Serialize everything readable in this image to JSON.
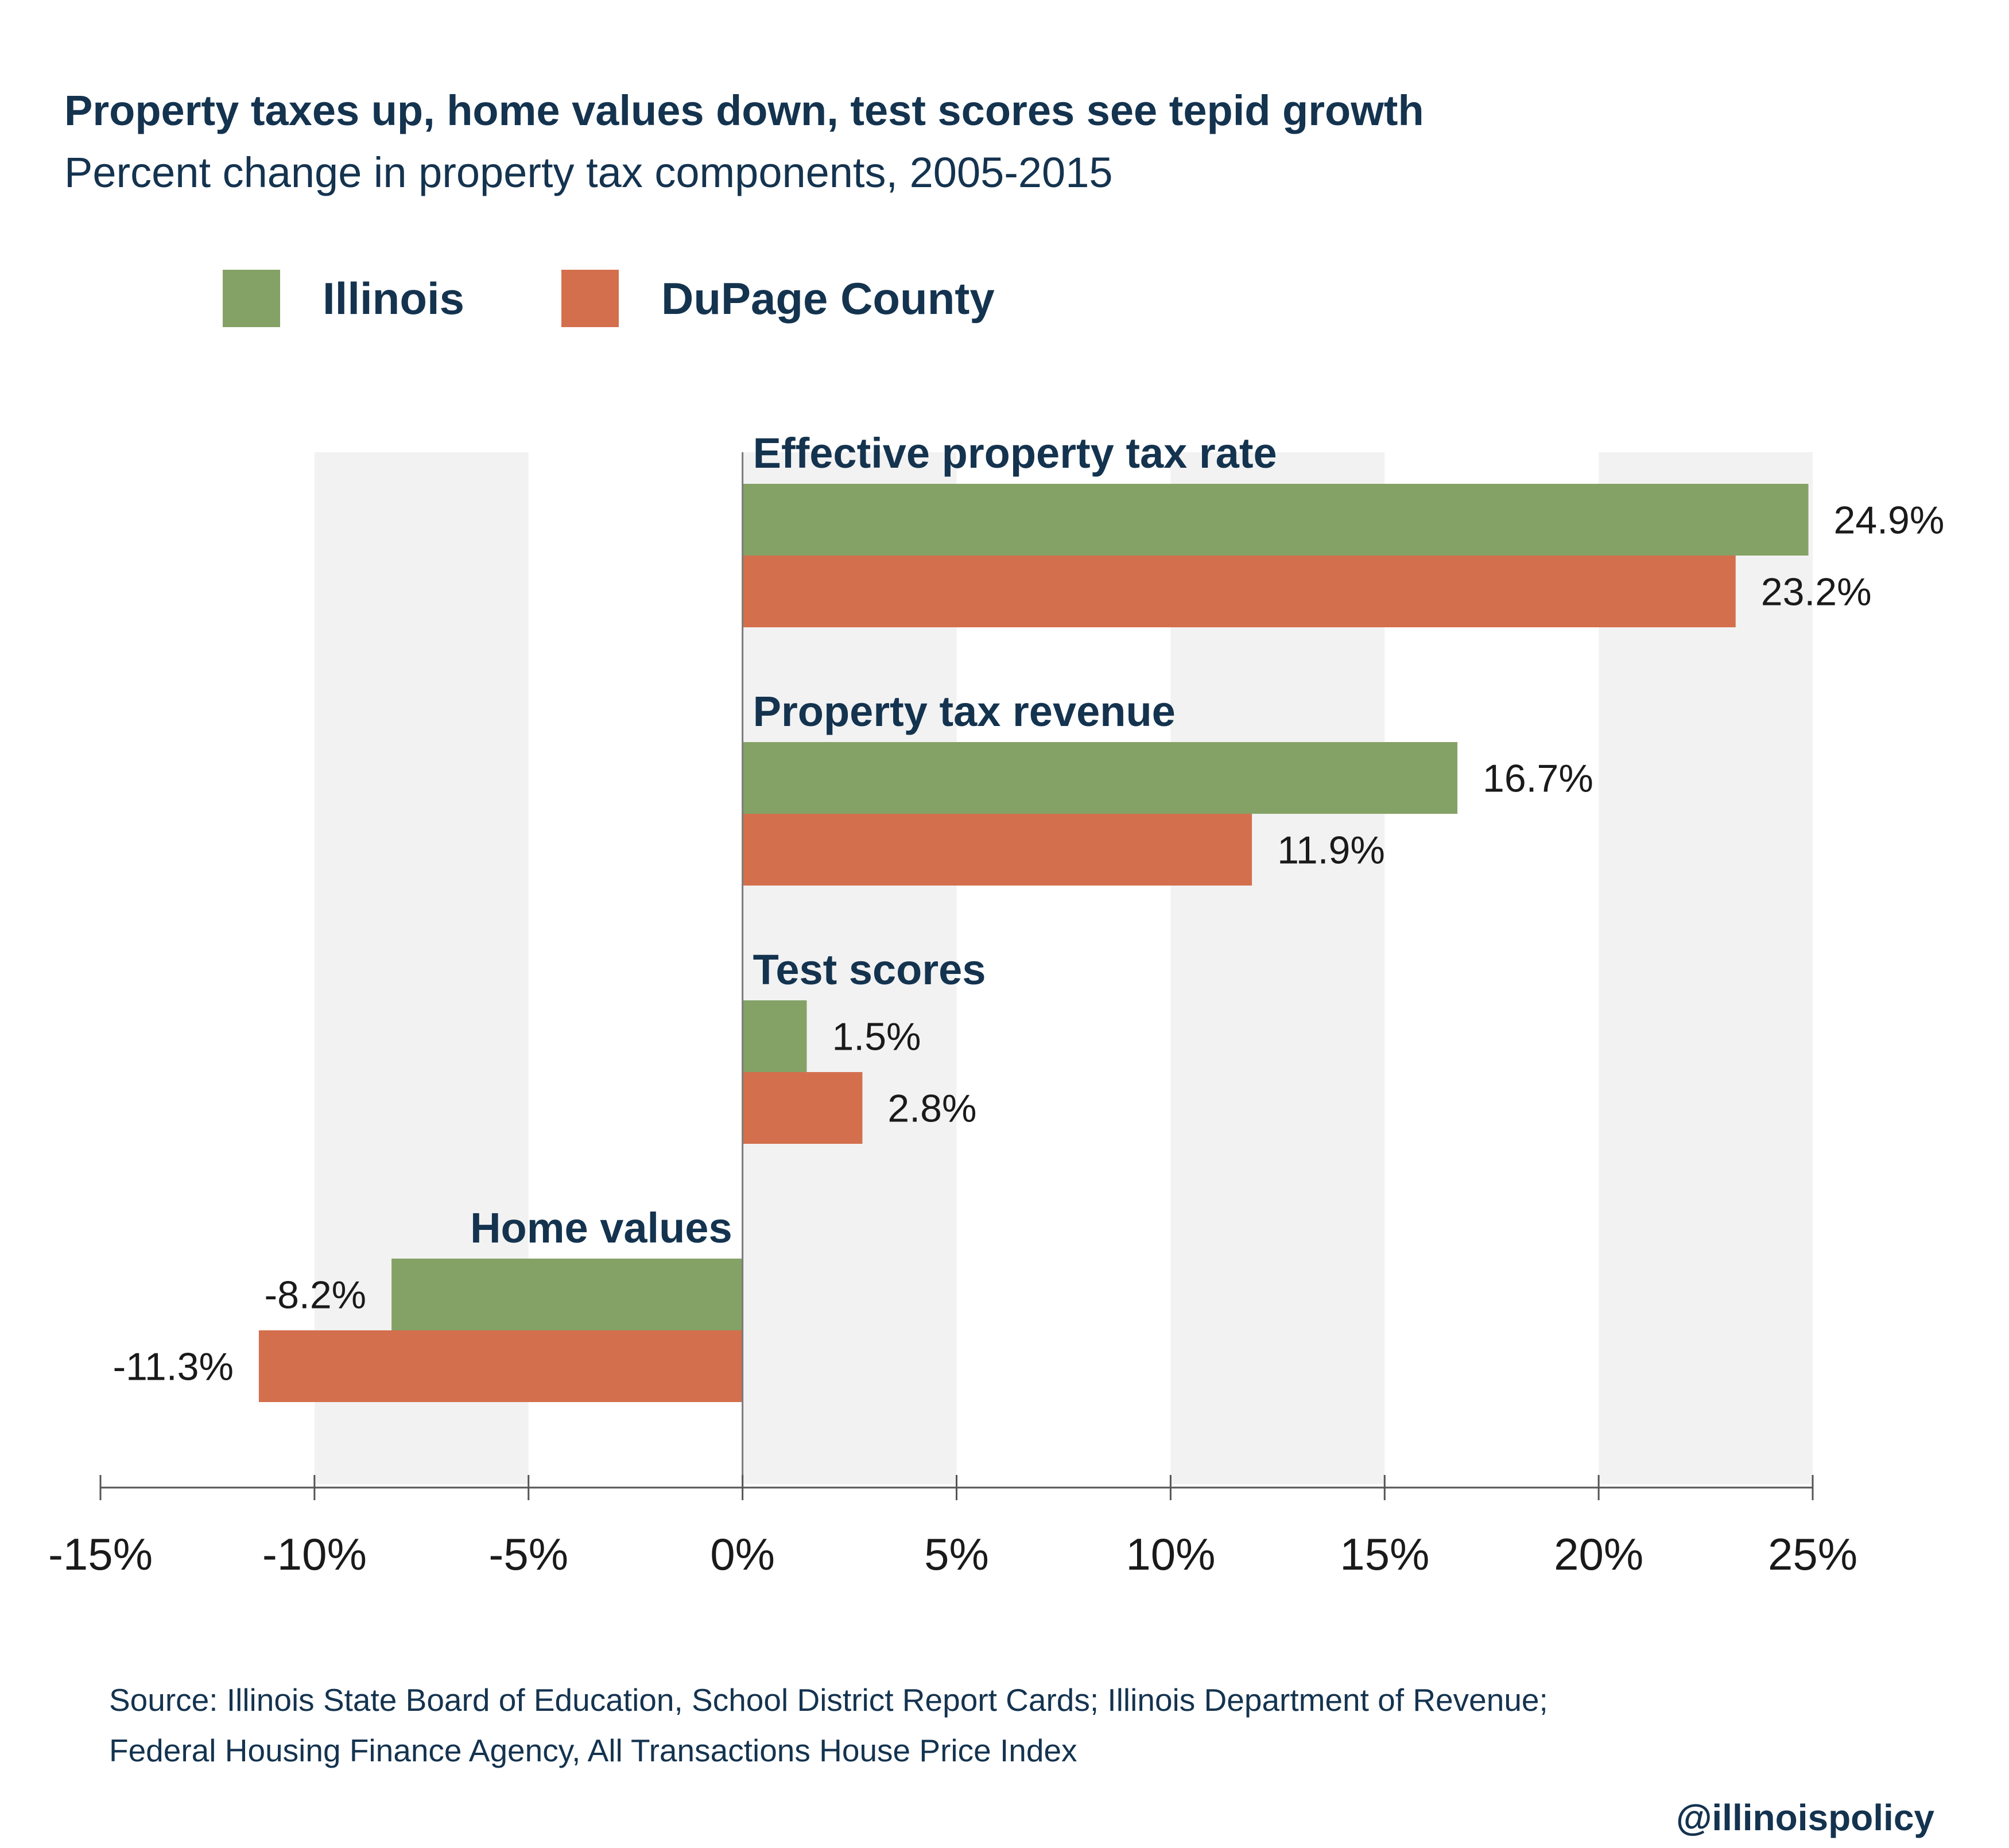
{
  "title": "Property taxes up, home values down, test scores see tepid growth",
  "subtitle": "Percent change in property tax components, 2005-2015",
  "legend": [
    {
      "label": "Illinois",
      "color": "#84a266"
    },
    {
      "label": "DuPage County",
      "color": "#d46f4d"
    }
  ],
  "chart_data": {
    "type": "bar",
    "orientation": "horizontal",
    "categories": [
      "Effective property tax rate",
      "Property tax revenue",
      "Test scores",
      "Home values"
    ],
    "series": [
      {
        "name": "Illinois",
        "color": "#84a266",
        "values": [
          24.9,
          16.7,
          1.5,
          -8.2
        ],
        "labels": [
          "24.9%",
          "16.7%",
          "1.5%",
          "-8.2%"
        ]
      },
      {
        "name": "DuPage County",
        "color": "#d46f4d",
        "values": [
          23.2,
          11.9,
          2.8,
          -11.3
        ],
        "labels": [
          "23.2%",
          "11.9%",
          "2.8%",
          "-11.3%"
        ]
      }
    ],
    "xlim": [
      -15,
      25
    ],
    "xticks": [
      -15,
      -10,
      -5,
      0,
      5,
      10,
      15,
      20,
      25
    ],
    "xtick_labels": [
      "-15%",
      "-10%",
      "-5%",
      "0%",
      "5%",
      "10%",
      "15%",
      "20%",
      "25%"
    ],
    "grid": "alternating vertical bands",
    "legend_position": "top-left"
  },
  "source": {
    "line1": "Source: Illinois State Board of Education, School District Report Cards; Illinois Department of Revenue;",
    "line2": "Federal Housing Finance Agency, All Transactions House Price Index"
  },
  "handle": "@illinoispolicy"
}
